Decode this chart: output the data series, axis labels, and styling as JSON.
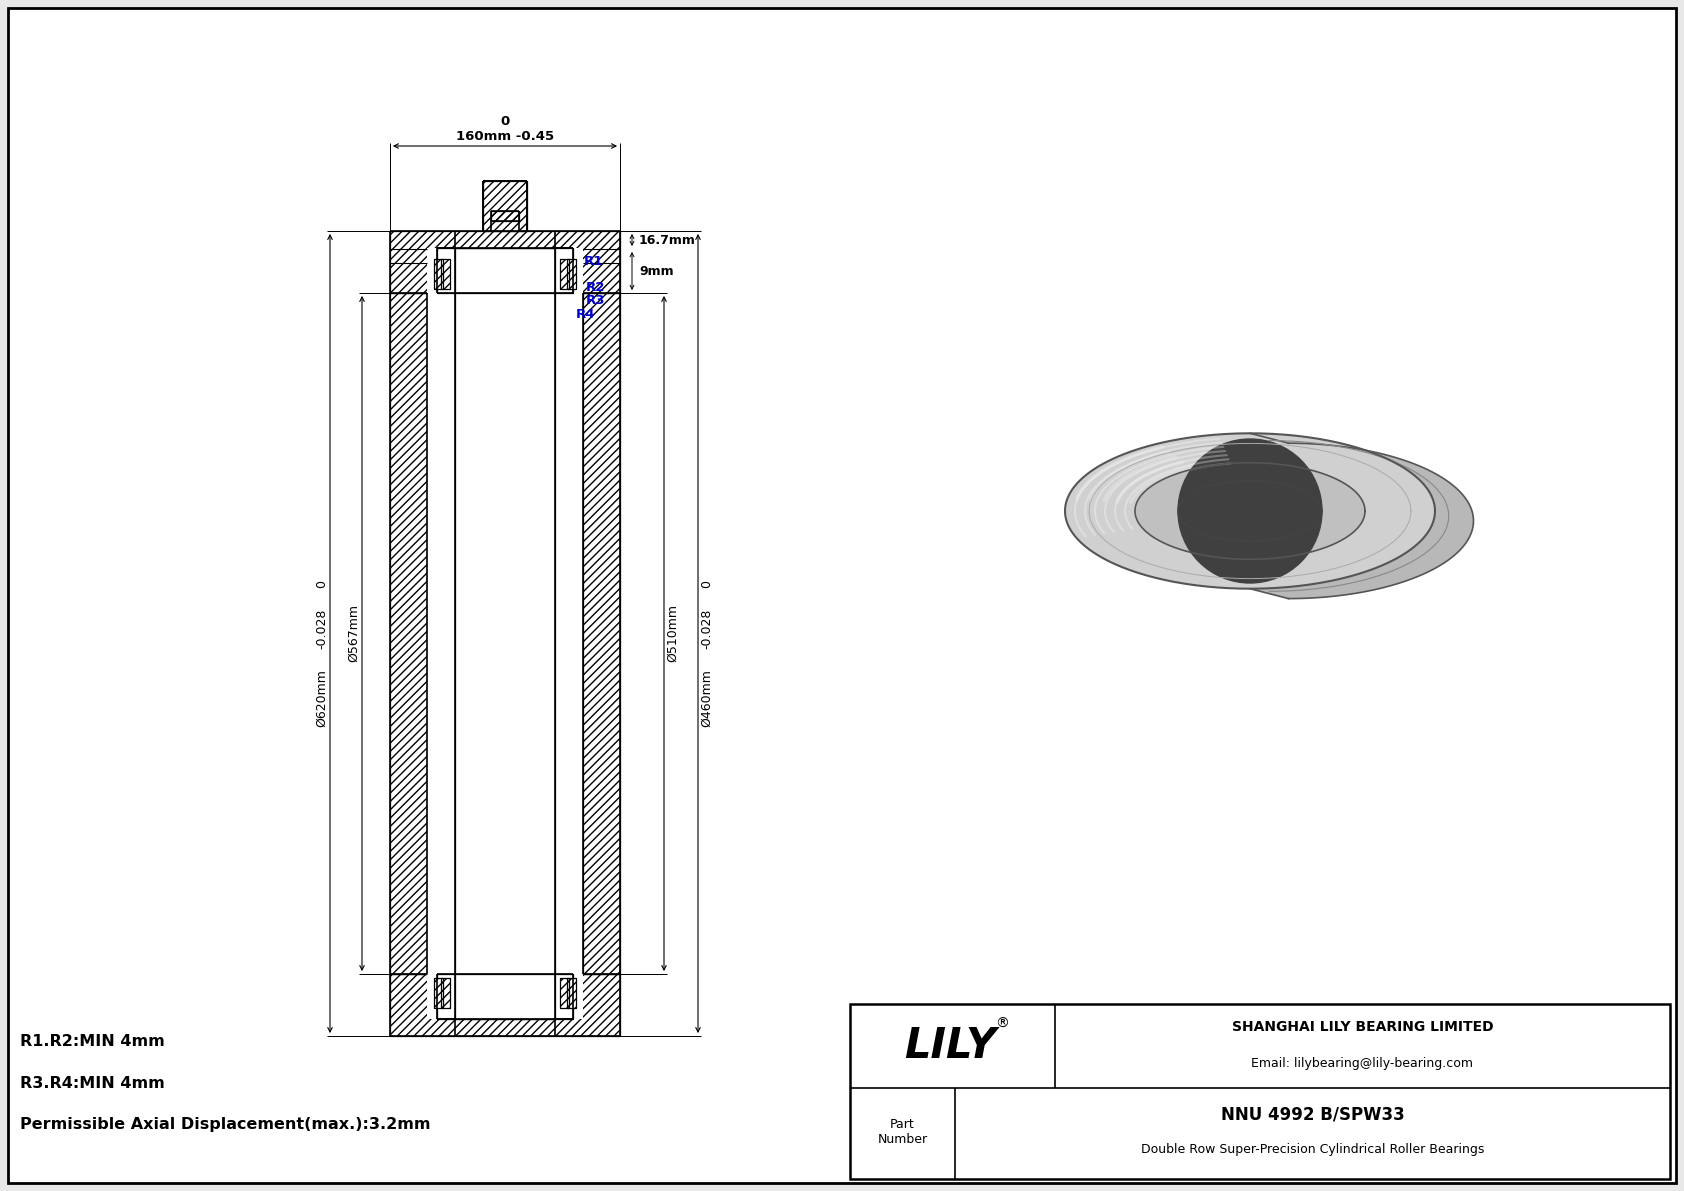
{
  "bg_color": "#e8e8e8",
  "part_number": "NNU 4992 B/SPW33",
  "part_desc": "Double Row Super-Precision Cylindrical Roller Bearings",
  "company_name": "SHANGHAI LILY BEARING LIMITED",
  "company_email": "Email: lilybearing@lily-bearing.com",
  "lily_text": "LILY",
  "dim_width_top": "0",
  "dim_width_label": "160mm -0.45",
  "dim_16_7": "16.7mm",
  "dim_9": "9mm",
  "dim_od1_zero": "0",
  "dim_od1_tol": "-0.028",
  "dim_od1_label": "Ø620mm",
  "dim_od2_label": "Ø567mm",
  "dim_id1_zero": "0",
  "dim_id1_tol": "-0.028",
  "dim_id1_label": "Ø460mm",
  "dim_id2_label": "Ø510mm",
  "r1": "R1",
  "r2": "R2",
  "r3": "R3",
  "r4": "R4",
  "note1": "R1.R2:MIN 4mm",
  "note2": "R3.R4:MIN 4mm",
  "note3": "Permissible Axial Displacement(max.):3.2mm",
  "lc": "#000000",
  "blue": "#0000cc"
}
